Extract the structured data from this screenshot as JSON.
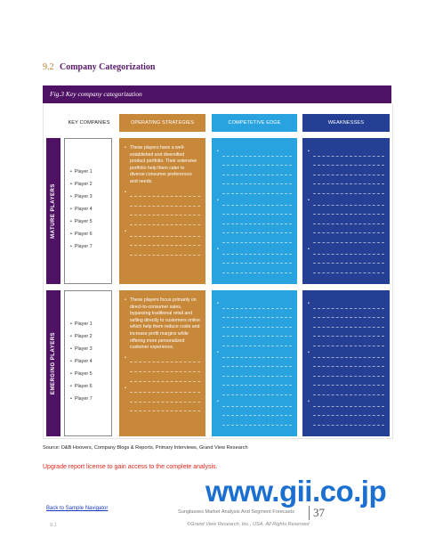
{
  "section": {
    "number": "9.2",
    "title": "Company Categorization"
  },
  "figure": {
    "caption": "Fig.3  Key company categorization"
  },
  "columns": {
    "key": "KEY COMPANIES",
    "op": "OPERATING STRATEGIES",
    "ce": "COMPETETIVE EDGE",
    "wk": "WEAKNESSES"
  },
  "rows": [
    {
      "label": "MATURE PLAYERS",
      "players": [
        "Player 1",
        "Player 2",
        "Player 3",
        "Player 4",
        "Player 5",
        "Player 6",
        "Player 7"
      ],
      "op_text": "These players have a well-established and diversified product portfolio. Their extensive portfolio help them cater to diverse consumer preferences and needs."
    },
    {
      "label": "EMERGING PLAYERS",
      "players": [
        "Player 1",
        "Player 2",
        "Player 3",
        "Player 4",
        "Player 5",
        "Player 6",
        "Player 7"
      ],
      "op_text": "These players focus primarily on direct-to-consumer sales, bypassing traditional retail and selling directly to customers online which help them reduce costs and increase profit margins while offering more personalized customer experience."
    }
  ],
  "source": "Source: D&B Hoovers, Company Blogs & Reports, Primary Interviews, Grand View Research",
  "upgrade_text": "Upgrade report license to gain access to the complete analysis.",
  "gii_url": "www.gii.co.jp",
  "footer": {
    "nav_link": "Back to Sample Navigator",
    "report_title": "Sunglasses Market Analysis And Segment Forecasts",
    "page_number": "37",
    "copyright": "©Grand View Research, Inc., USA. All Rights Reserved",
    "left_label": "9.1"
  },
  "colors": {
    "purple": "#4f1164",
    "operating": "#c8883a",
    "competitive": "#29a3df",
    "weakness": "#243f93",
    "upgrade": "#e0261b",
    "gii": "#1a6fd1"
  }
}
